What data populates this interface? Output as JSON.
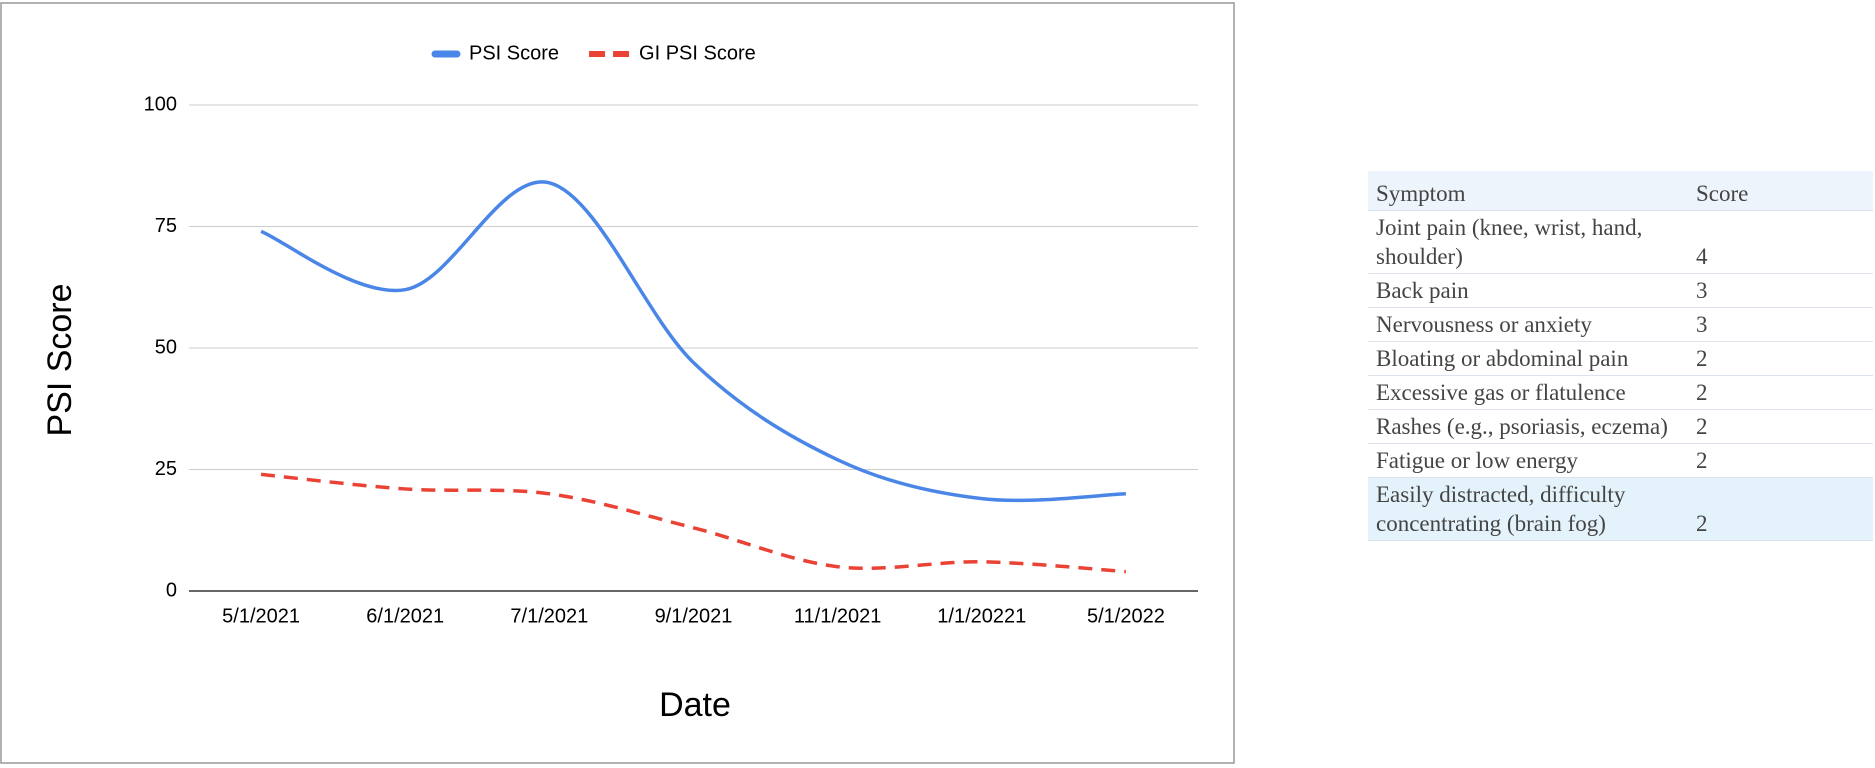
{
  "chart_data": {
    "type": "line",
    "categories": [
      "5/1/2021",
      "6/1/2021",
      "7/1/2021",
      "9/1/2021",
      "11/1/2021",
      "1/1/20221",
      "5/1/2022"
    ],
    "series": [
      {
        "name": "PSI Score",
        "color": "#4a86e8",
        "values": [
          74,
          62,
          84,
          47,
          27,
          19,
          20
        ]
      },
      {
        "name": "GI PSI Score",
        "color": "#ea4335",
        "values": [
          24,
          21,
          20,
          13,
          5,
          6,
          4
        ]
      }
    ],
    "ylim": [
      0,
      100
    ],
    "yticks": [
      0,
      25,
      50,
      75,
      100
    ],
    "grid": true,
    "x_label": "Date",
    "y_label": "PSI Score",
    "legend": "top"
  },
  "table": {
    "header": [
      "Symptom",
      "Score"
    ],
    "rows": [
      [
        "Joint pain (knee, wrist, hand, shoulder)",
        4
      ],
      [
        "Back pain",
        3
      ],
      [
        "Nervousness or anxiety",
        3
      ],
      [
        "Bloating or abdominal pain",
        2
      ],
      [
        "Excessive gas or flatulence",
        2
      ],
      [
        "Rashes (e.g., psoriasis, eczema)",
        2
      ],
      [
        "Fatigue or low energy",
        2
      ],
      [
        "Easily distracted, difficulty concentrating (brain fog)",
        2
      ]
    ]
  }
}
